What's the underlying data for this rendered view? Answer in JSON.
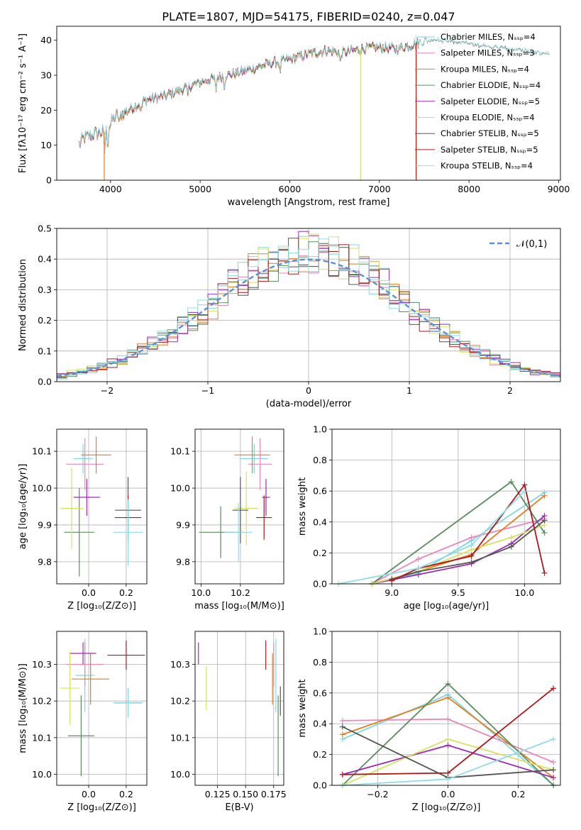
{
  "figure_title": "PLATE=1807, MJD=54175, FIBERID=0240, z=0.047",
  "model_colors": [
    "#7fd6df",
    "#e986bd",
    "#e27d22",
    "#5a8d5e",
    "#9a2ab2",
    "#d3e35f",
    "#555555",
    "#b01818",
    "#90dde4"
  ],
  "model_colors_note_free": true,
  "chart_data": [
    {
      "id": "spectrum",
      "type": "line",
      "xlabel": "wavelength [Angstrom, rest frame]",
      "ylabel": "Flux [fλ10⁻¹⁷ erg cm⁻² s⁻¹ A⁻¹]",
      "xlim": [
        3400,
        9020
      ],
      "ylim": [
        0,
        44
      ],
      "xticks": [
        4000,
        5000,
        6000,
        7000,
        8000,
        9000
      ],
      "yticks": [
        0,
        10,
        20,
        30,
        40
      ],
      "grid": false,
      "legend_position": "top-right",
      "legend": [
        "Chabrier MILES, Nₛₛₚ=4",
        "Salpeter MILES, Nₛₛₚ=3",
        "Kroupa MILES, Nₛₛₚ=4",
        "Chabrier ELODIE, Nₛₛₚ=4",
        "Salpeter ELODIE, Nₛₛₚ=5",
        "Kroupa ELODIE, Nₛₛₚ=4",
        "Chabrier STELIB, Nₛₛₚ=5",
        "Salpeter STELIB, Nₛₛₚ=5",
        "Kroupa STELIB, Nₛₛₚ=4"
      ],
      "continuum": {
        "x": [
          3650,
          3700,
          3800,
          3950,
          4050,
          4200,
          4400,
          4600,
          4800,
          5000,
          5200,
          5400,
          5600,
          5800,
          6000,
          6200,
          6400,
          6600,
          6800,
          7000,
          7200,
          7400,
          7600,
          7800,
          8000,
          8200,
          8400,
          8600,
          8800,
          8900
        ],
        "y": [
          10,
          12,
          13,
          14,
          18,
          20,
          23,
          24,
          26,
          28,
          29.5,
          30.5,
          32,
          33.5,
          34.5,
          36,
          37,
          36.5,
          37.5,
          38,
          37.5,
          39,
          40,
          39.5,
          39,
          38,
          37.5,
          37,
          36,
          36
        ]
      },
      "dropouts": [
        {
          "x": 3930,
          "series": 2
        },
        {
          "x": 6790,
          "series": 5
        },
        {
          "x": 7410,
          "series": 7
        }
      ]
    },
    {
      "id": "residuals",
      "type": "bar",
      "xlabel": "(data-model)/error",
      "ylabel": "Normed distribution",
      "xlim": [
        -2.5,
        2.5
      ],
      "ylim": [
        0,
        0.5
      ],
      "xticks": [
        -2,
        -1,
        0,
        1,
        2
      ],
      "yticks": [
        0.0,
        0.1,
        0.2,
        0.3,
        0.4,
        0.5
      ],
      "grid": true,
      "legend_position": "top-right",
      "legend": [
        "𝒩(0,1)"
      ],
      "bin_width": 0.1,
      "reference_curve": "gaussian(0,1)"
    },
    {
      "id": "age-vs-Z",
      "type": "scatter",
      "xlabel": "Z [log₁₀(Z/Z⊙)]",
      "ylabel": "age  [log₁₀(age/yr)]",
      "xlim": [
        -0.17,
        0.31
      ],
      "ylim": [
        9.74,
        10.16
      ],
      "xticks": [
        0.0,
        0.2
      ],
      "yticks": [
        9.8,
        9.9,
        10.0,
        10.1
      ],
      "grid": true,
      "points": [
        {
          "x": -0.03,
          "y": 10.08,
          "xerr": 0.05,
          "yerr": 0.04,
          "series": 0
        },
        {
          "x": -0.02,
          "y": 10.065,
          "xerr": 0.1,
          "yerr": 0.07,
          "series": 1
        },
        {
          "x": 0.04,
          "y": 10.09,
          "xerr": 0.08,
          "yerr": 0.05,
          "series": 2
        },
        {
          "x": -0.05,
          "y": 9.88,
          "xerr": 0.08,
          "yerr": 0.12,
          "series": 3
        },
        {
          "x": -0.01,
          "y": 9.975,
          "xerr": 0.07,
          "yerr": 0.05,
          "series": 4
        },
        {
          "x": -0.09,
          "y": 9.945,
          "xerr": 0.06,
          "yerr": 0.11,
          "series": 5
        },
        {
          "x": 0.21,
          "y": 9.94,
          "xerr": 0.07,
          "yerr": 0.09,
          "series": 6
        },
        {
          "x": 0.21,
          "y": 9.92,
          "xerr": 0.07,
          "yerr": 0.06,
          "series": 7
        },
        {
          "x": 0.21,
          "y": 9.88,
          "xerr": 0.08,
          "yerr": 0.09,
          "series": 8
        }
      ]
    },
    {
      "id": "age-vs-mass",
      "type": "scatter",
      "xlabel": "mass [log₁₀(M/M⊙)]",
      "ylabel": "",
      "xlim": [
        9.97,
        10.42
      ],
      "ylim": [
        9.74,
        10.16
      ],
      "xticks": [
        10.0,
        10.2
      ],
      "yticks": [
        9.8,
        9.9,
        10.0,
        10.1
      ],
      "grid": true,
      "points": [
        {
          "x": 10.27,
          "y": 10.08,
          "xerr": 0.07,
          "yerr": 0.04,
          "series": 0
        },
        {
          "x": 10.3,
          "y": 10.065,
          "xerr": 0.06,
          "yerr": 0.07,
          "series": 1
        },
        {
          "x": 10.26,
          "y": 10.09,
          "xerr": 0.09,
          "yerr": 0.05,
          "series": 2
        },
        {
          "x": 10.1,
          "y": 9.88,
          "xerr": 0.11,
          "yerr": 0.07,
          "series": 3
        },
        {
          "x": 10.33,
          "y": 9.975,
          "xerr": 0.02,
          "yerr": 0.05,
          "series": 4
        },
        {
          "x": 10.23,
          "y": 9.945,
          "xerr": 0.06,
          "yerr": 0.1,
          "series": 5
        },
        {
          "x": 10.2,
          "y": 9.94,
          "xerr": 0.04,
          "yerr": 0.09,
          "series": 6
        },
        {
          "x": 10.32,
          "y": 9.92,
          "xerr": 0.04,
          "yerr": 0.06,
          "series": 7
        },
        {
          "x": 10.19,
          "y": 9.88,
          "xerr": 0.07,
          "yerr": 0.08,
          "series": 8
        }
      ]
    },
    {
      "id": "mass-weight-vs-age",
      "type": "line",
      "xlabel": "age  [log₁₀(age/yr)]",
      "ylabel": "mass weight",
      "xlim": [
        8.55,
        10.27
      ],
      "ylim": [
        0,
        1
      ],
      "xticks": [
        9.0,
        9.5,
        10.0
      ],
      "yticks": [
        0.0,
        0.2,
        0.4,
        0.6,
        0.8,
        1.0
      ],
      "grid": true,
      "series": [
        {
          "x": [
            8.85,
            9.2,
            9.6,
            10.15
          ],
          "y": [
            0.0,
            0.07,
            0.28,
            0.59
          ]
        },
        {
          "x": [
            8.85,
            9.2,
            9.6,
            10.15
          ],
          "y": [
            0.0,
            0.16,
            0.3,
            0.42
          ]
        },
        {
          "x": [
            8.85,
            9.2,
            9.6,
            10.15
          ],
          "y": [
            0.0,
            0.08,
            0.19,
            0.57
          ]
        },
        {
          "x": [
            8.85,
            9.9,
            10.15
          ],
          "y": [
            0.0,
            0.66,
            0.33
          ]
        },
        {
          "x": [
            8.85,
            9.2,
            9.6,
            9.9,
            10.15
          ],
          "y": [
            0.0,
            0.06,
            0.13,
            0.26,
            0.44
          ]
        },
        {
          "x": [
            8.85,
            9.2,
            9.6,
            9.9,
            10.15
          ],
          "y": [
            0.0,
            0.08,
            0.22,
            0.3,
            0.38
          ]
        },
        {
          "x": [
            9.0,
            9.2,
            9.6,
            9.9,
            10.15
          ],
          "y": [
            0.03,
            0.08,
            0.14,
            0.24,
            0.41
          ]
        },
        {
          "x": [
            9.0,
            9.2,
            9.6,
            10.0,
            10.15
          ],
          "y": [
            0.02,
            0.1,
            0.18,
            0.64,
            0.07
          ]
        },
        {
          "x": [
            8.6,
            9.2,
            9.6,
            10.0
          ],
          "y": [
            0.0,
            0.1,
            0.25,
            0.6
          ]
        }
      ]
    },
    {
      "id": "mass-vs-Z",
      "type": "scatter",
      "xlabel": "Z [log₁₀(Z/Z⊙)]",
      "ylabel": "mass [log₁₀(M/M⊙)]",
      "xlim": [
        -0.17,
        0.31
      ],
      "ylim": [
        9.97,
        10.39
      ],
      "xticks": [
        0.0,
        0.2
      ],
      "yticks": [
        10.0,
        10.1,
        10.2,
        10.3
      ],
      "grid": true,
      "points": [
        {
          "x": -0.02,
          "y": 10.27,
          "xerr": 0.05,
          "yerr": 0.1,
          "series": 0
        },
        {
          "x": -0.02,
          "y": 10.3,
          "xerr": 0.1,
          "yerr": 0.06,
          "series": 1
        },
        {
          "x": 0.01,
          "y": 10.26,
          "xerr": 0.1,
          "yerr": 0.07,
          "series": 2
        },
        {
          "x": -0.04,
          "y": 10.105,
          "xerr": 0.07,
          "yerr": 0.11,
          "series": 3
        },
        {
          "x": -0.03,
          "y": 10.33,
          "xerr": 0.07,
          "yerr": 0.03,
          "series": 4
        },
        {
          "x": -0.1,
          "y": 10.235,
          "xerr": 0.05,
          "yerr": 0.1,
          "series": 5
        },
        {
          "x": 0.21,
          "y": 10.195,
          "xerr": 0.07,
          "yerr": 0.04,
          "series": 6
        },
        {
          "x": 0.2,
          "y": 10.325,
          "xerr": 0.1,
          "yerr": 0.04,
          "series": 7
        },
        {
          "x": 0.21,
          "y": 10.195,
          "xerr": 0.08,
          "yerr": 0.04,
          "series": 8
        }
      ]
    },
    {
      "id": "mass-vs-EBV",
      "type": "scatter",
      "xlabel": "E(B-V)",
      "ylabel": "",
      "xlim": [
        0.105,
        0.184
      ],
      "ylim": [
        9.97,
        10.39
      ],
      "xticks": [
        0.125,
        0.15,
        0.175
      ],
      "yticks": [
        10.0,
        10.1,
        10.2,
        10.3
      ],
      "grid": true,
      "points": [
        {
          "x": 0.177,
          "y": 10.27,
          "xerr": 0,
          "yerr": 0.1,
          "series": 0
        },
        {
          "x": 0.175,
          "y": 10.3,
          "xerr": 0,
          "yerr": 0.06,
          "series": 1
        },
        {
          "x": 0.174,
          "y": 10.26,
          "xerr": 0,
          "yerr": 0.07,
          "series": 2
        },
        {
          "x": 0.179,
          "y": 10.105,
          "xerr": 0,
          "yerr": 0.11,
          "series": 3
        },
        {
          "x": 0.108,
          "y": 10.33,
          "xerr": 0,
          "yerr": 0.03,
          "series": 4
        },
        {
          "x": 0.115,
          "y": 10.235,
          "xerr": 0,
          "yerr": 0.06,
          "series": 5
        },
        {
          "x": 0.181,
          "y": 10.2,
          "xerr": 0,
          "yerr": 0.04,
          "series": 6
        },
        {
          "x": 0.168,
          "y": 10.325,
          "xerr": 0,
          "yerr": 0.04,
          "series": 7
        },
        {
          "x": 0.177,
          "y": 10.21,
          "xerr": 0,
          "yerr": 0.04,
          "series": 8
        }
      ]
    },
    {
      "id": "mass-weight-vs-Z",
      "type": "line",
      "xlabel": "Z [log₁₀(Z/Z⊙)]",
      "ylabel": "mass weight",
      "xlim": [
        -0.33,
        0.32
      ],
      "ylim": [
        0,
        1
      ],
      "xticks": [
        -0.2,
        0.0,
        0.2
      ],
      "yticks": [
        0.0,
        0.2,
        0.4,
        0.6,
        0.8,
        1.0
      ],
      "grid": true,
      "series": [
        {
          "x": [
            -0.3,
            0.0,
            0.3
          ],
          "y": [
            0.3,
            0.59,
            0.0
          ]
        },
        {
          "x": [
            -0.3,
            0.0,
            0.3
          ],
          "y": [
            0.42,
            0.43,
            0.15
          ]
        },
        {
          "x": [
            -0.3,
            0.0,
            0.3
          ],
          "y": [
            0.33,
            0.57,
            0.05
          ]
        },
        {
          "x": [
            -0.3,
            0.0,
            0.3
          ],
          "y": [
            0.0,
            0.66,
            0.0
          ]
        },
        {
          "x": [
            -0.3,
            0.0,
            0.3
          ],
          "y": [
            0.07,
            0.26,
            0.05
          ]
        },
        {
          "x": [
            -0.3,
            0.0,
            0.3
          ],
          "y": [
            0.0,
            0.3,
            0.1
          ]
        },
        {
          "x": [
            -0.3,
            0.0,
            0.3
          ],
          "y": [
            0.38,
            0.05,
            0.1
          ]
        },
        {
          "x": [
            -0.3,
            0.0,
            0.3
          ],
          "y": [
            0.07,
            0.08,
            0.63
          ]
        },
        {
          "x": [
            -0.3,
            0.0,
            0.3
          ],
          "y": [
            0.0,
            0.04,
            0.3
          ]
        }
      ]
    }
  ]
}
